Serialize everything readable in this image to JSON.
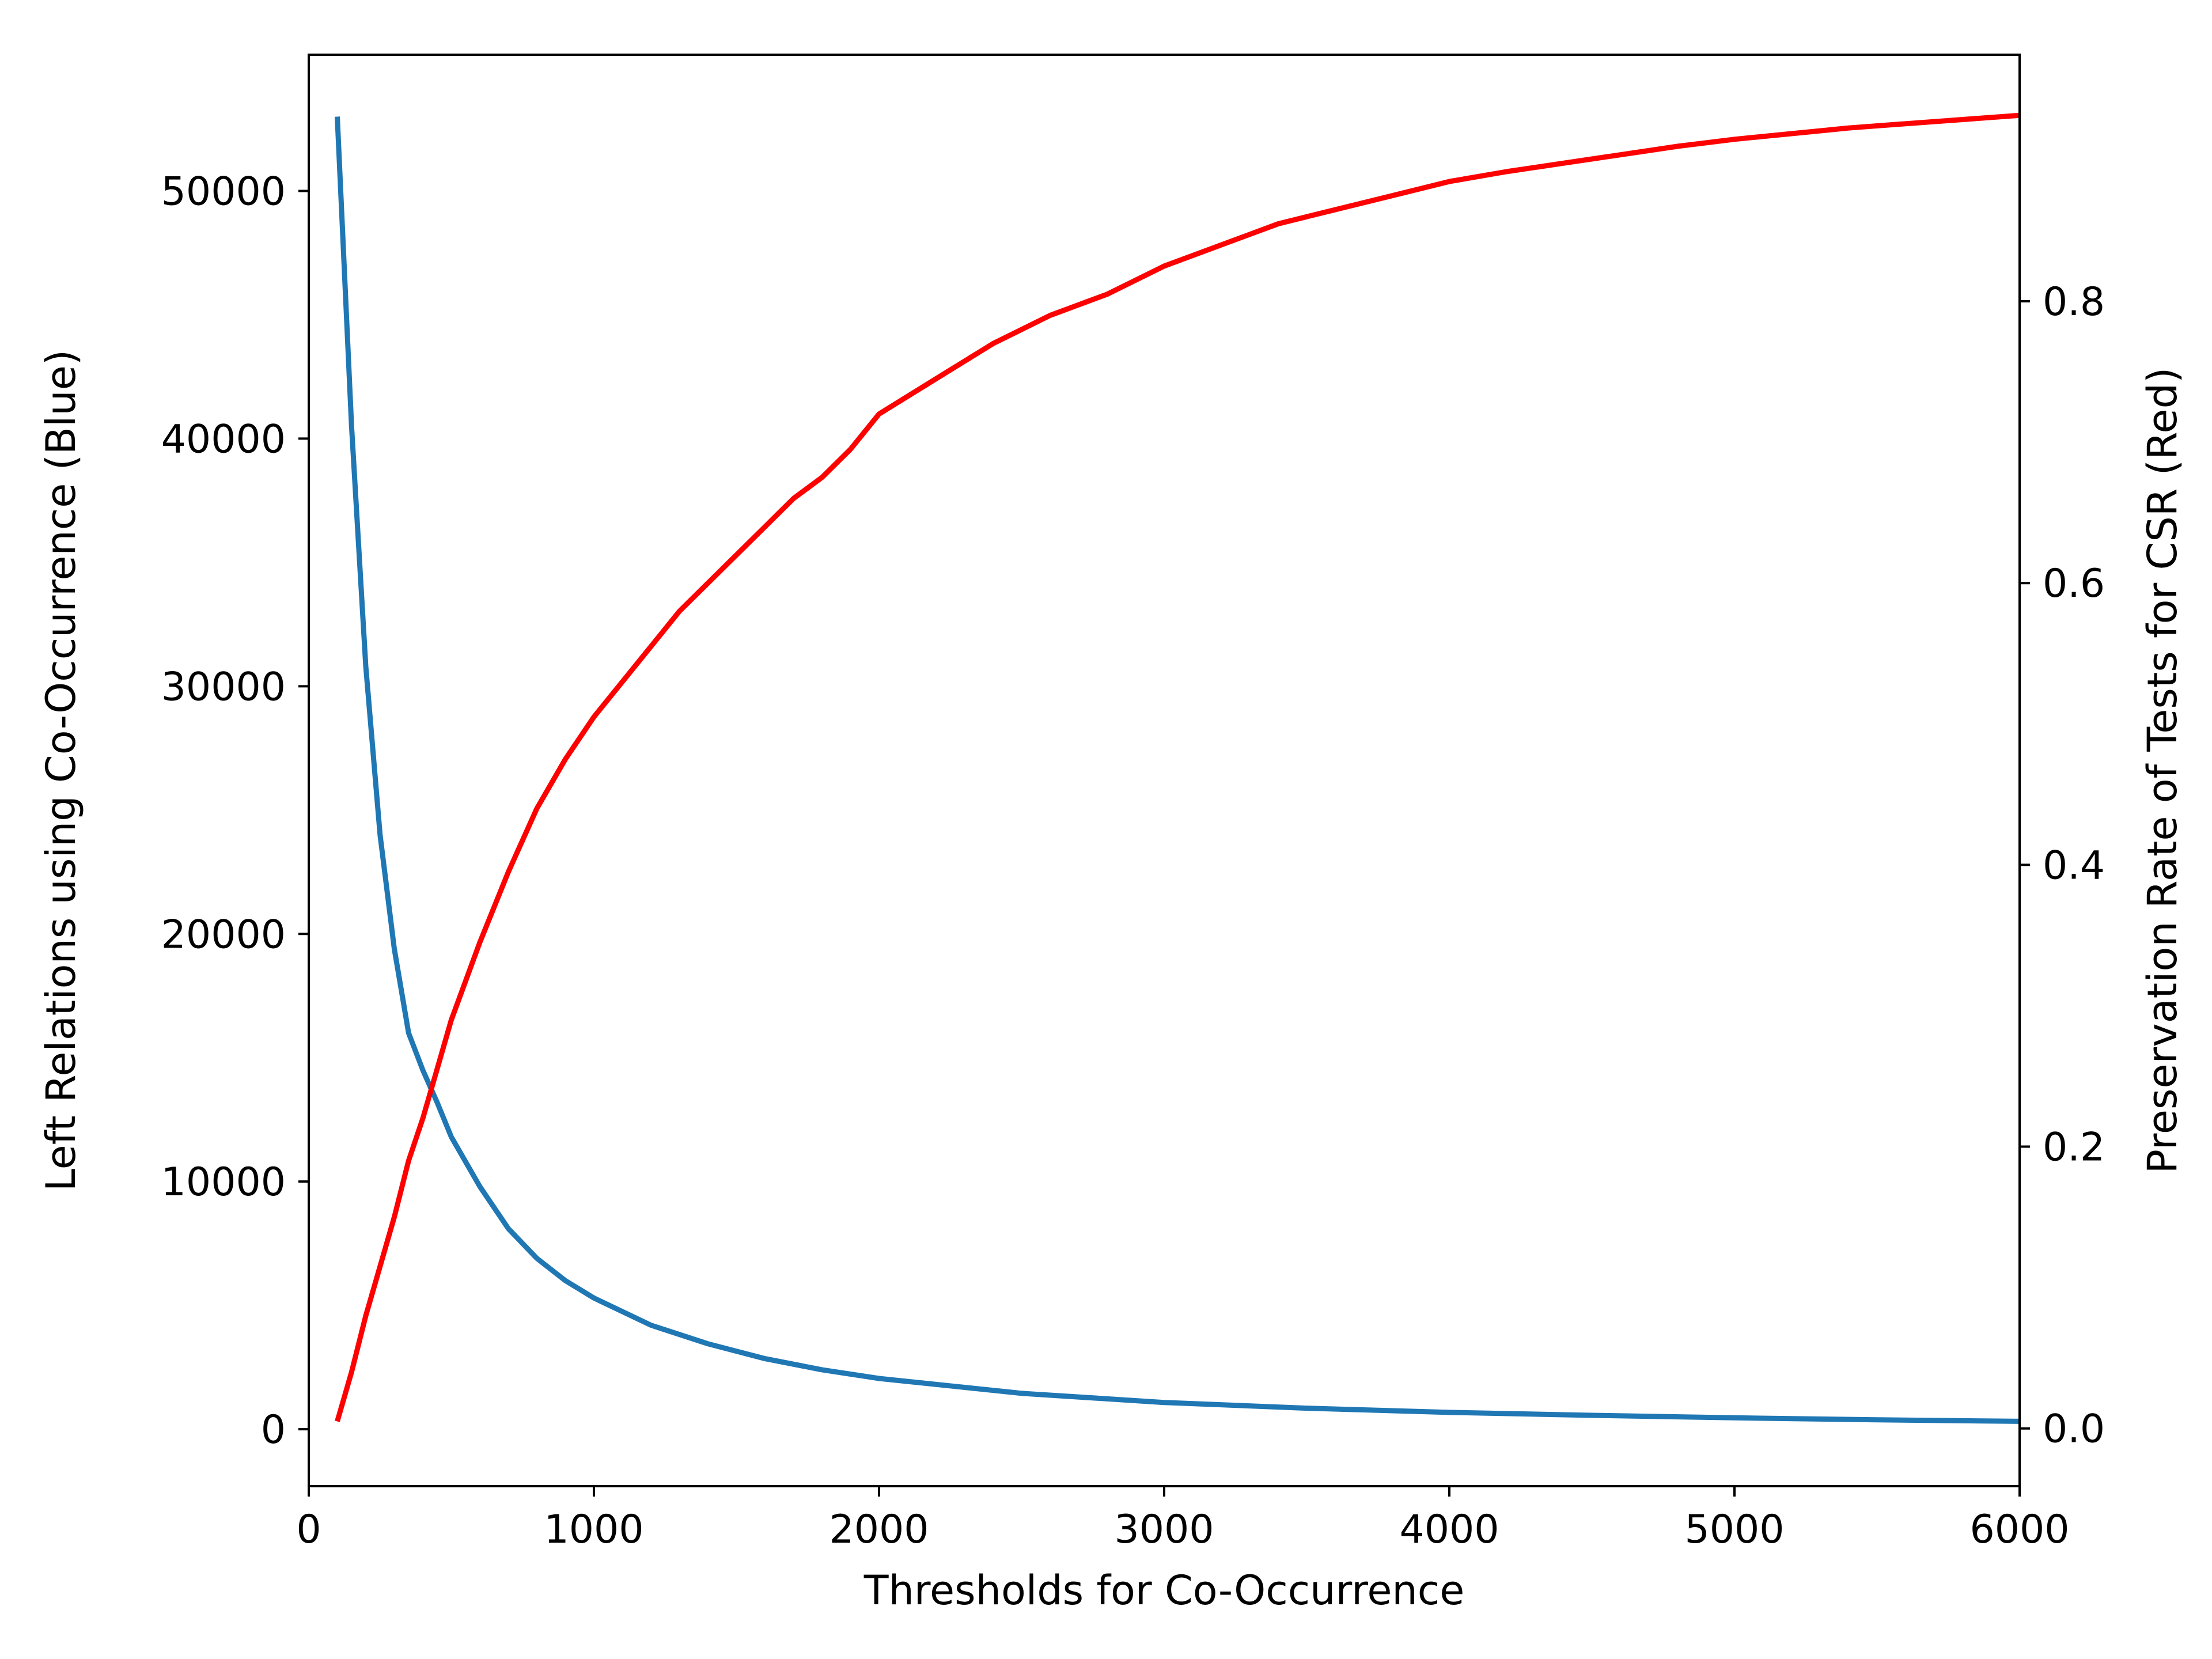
{
  "chart_data": {
    "type": "line",
    "title": "",
    "xlabel": "Thresholds for Co-Occurrence",
    "ylabel_left": "Left Relations using Co-Occurrence (Blue)",
    "ylabel_right": "Preservation Rate of Tests for CSR (Red)",
    "xlim": [
      0,
      6000
    ],
    "ylim_left": [
      -2300,
      55500
    ],
    "ylim_right": [
      -0.041,
      0.975
    ],
    "xticks": [
      0,
      1000,
      2000,
      3000,
      4000,
      5000,
      6000
    ],
    "yticks_left": [
      0,
      10000,
      20000,
      30000,
      40000,
      50000
    ],
    "yticks_right": [
      0.0,
      0.2,
      0.4,
      0.6,
      0.8
    ],
    "grid": false,
    "legend": "none",
    "series": [
      {
        "axis": "left",
        "color": "#1f77b4",
        "x": [
          100,
          150,
          200,
          250,
          300,
          350,
          400,
          450,
          500,
          600,
          700,
          800,
          900,
          1000,
          1200,
          1400,
          1600,
          1800,
          2000,
          2500,
          3000,
          3500,
          4000,
          4500,
          5000,
          5500,
          6000
        ],
        "y": [
          53000,
          40500,
          30800,
          24000,
          19400,
          16000,
          14500,
          13200,
          11800,
          9800,
          8100,
          6900,
          6000,
          5300,
          4200,
          3450,
          2850,
          2400,
          2050,
          1450,
          1080,
          850,
          680,
          560,
          460,
          380,
          320
        ]
      },
      {
        "axis": "right",
        "color": "#ff0000",
        "x": [
          100,
          150,
          200,
          250,
          300,
          350,
          400,
          450,
          500,
          600,
          700,
          800,
          900,
          1000,
          1100,
          1200,
          1300,
          1400,
          1500,
          1600,
          1700,
          1800,
          1900,
          2000,
          2200,
          2400,
          2600,
          2800,
          3000,
          3200,
          3400,
          3600,
          3800,
          4000,
          4200,
          4400,
          4600,
          4800,
          5000,
          5200,
          5400,
          5600,
          5800,
          6000
        ],
        "y": [
          0.005,
          0.04,
          0.08,
          0.115,
          0.15,
          0.19,
          0.22,
          0.255,
          0.29,
          0.345,
          0.395,
          0.44,
          0.475,
          0.505,
          0.53,
          0.555,
          0.58,
          0.6,
          0.62,
          0.64,
          0.66,
          0.675,
          0.695,
          0.72,
          0.745,
          0.77,
          0.79,
          0.805,
          0.825,
          0.84,
          0.855,
          0.865,
          0.875,
          0.885,
          0.892,
          0.898,
          0.904,
          0.91,
          0.915,
          0.919,
          0.923,
          0.926,
          0.929,
          0.932
        ]
      }
    ]
  }
}
